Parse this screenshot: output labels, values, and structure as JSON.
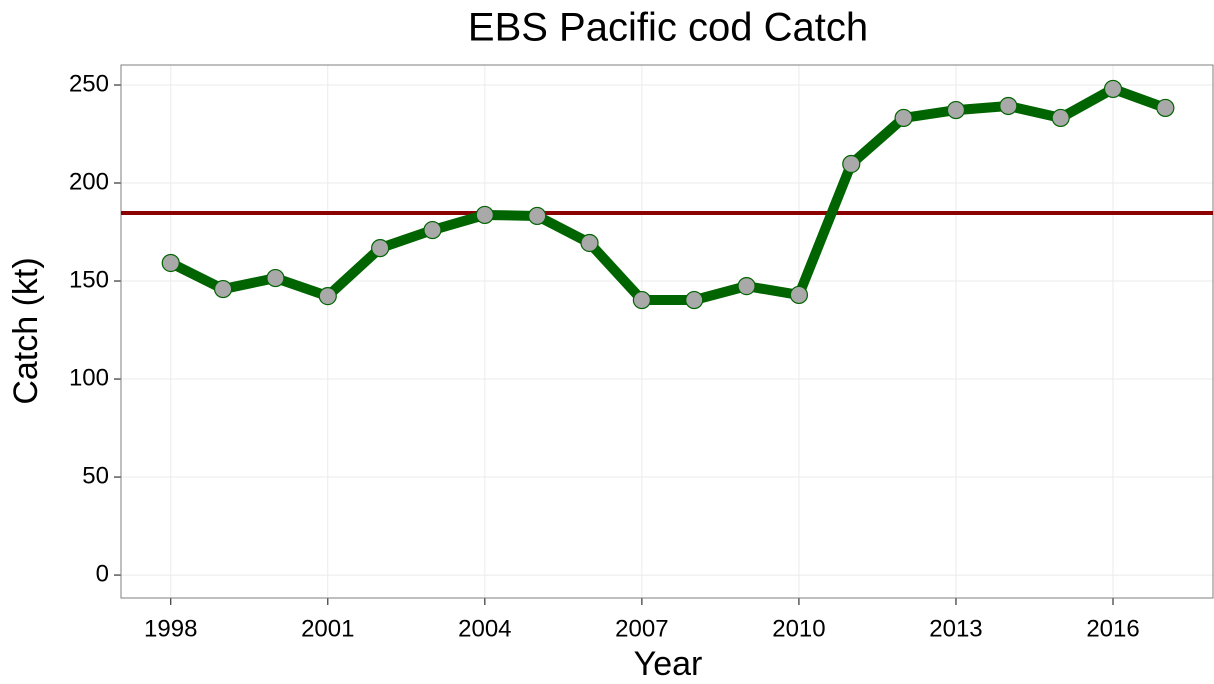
{
  "chart_data": {
    "type": "line",
    "title": "EBS Pacific cod Catch",
    "x_label": "Year",
    "y_label": "Catch (kt)",
    "x": [
      1998,
      1999,
      2000,
      2001,
      2002,
      2003,
      2004,
      2005,
      2006,
      2007,
      2008,
      2009,
      2010,
      2011,
      2012,
      2013,
      2014,
      2015,
      2016,
      2017
    ],
    "series": [
      {
        "color": "#006400",
        "marker_fill": "#a9a9a9",
        "values": [
          159.2,
          145.9,
          151.5,
          142.3,
          166.8,
          176.0,
          183.7,
          183.2,
          169.4,
          140.3,
          140.3,
          147.4,
          142.9,
          209.7,
          233.2,
          237.2,
          239.3,
          233.2,
          248.0,
          238.3
        ]
      }
    ],
    "hline": {
      "value": 184.7,
      "color": "#8b0000"
    },
    "xlim": [
      1997.05,
      2017.91
    ],
    "xticks": [
      1998,
      2001,
      2004,
      2007,
      2010,
      2013,
      2016
    ],
    "ylim": [
      -11.7,
      260.2
    ],
    "yticks": [
      0,
      50,
      100,
      150,
      200,
      250
    ],
    "grid": true
  }
}
